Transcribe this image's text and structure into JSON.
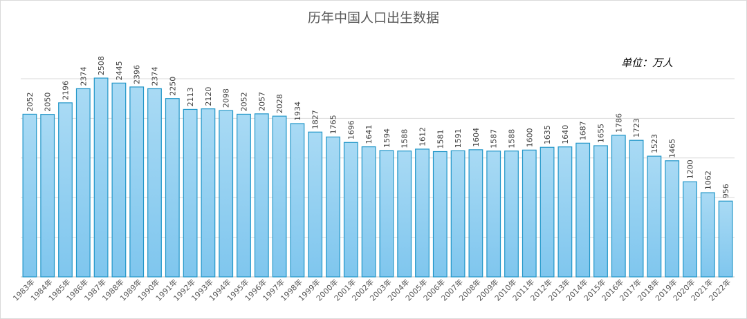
{
  "chart_data": {
    "type": "bar",
    "title": "历年中国人口出生数据",
    "unit_label": "单位：万人",
    "categories": [
      "1983年",
      "1984年",
      "1985年",
      "1986年",
      "1987年",
      "1988年",
      "1989年",
      "1990年",
      "1991年",
      "1992年",
      "1993年",
      "1994年",
      "1995年",
      "1996年",
      "1997年",
      "1998年",
      "1999年",
      "2000年",
      "2001年",
      "2002年",
      "2003年",
      "2004年",
      "2005年",
      "2006年",
      "2007年",
      "2008年",
      "2009年",
      "2010年",
      "2011年",
      "2012年",
      "2013年",
      "2014年",
      "2015年",
      "2016年",
      "2017年",
      "2018年",
      "2019年",
      "2020年",
      "2021年",
      "2022年"
    ],
    "values": [
      2052,
      2050,
      2196,
      2374,
      2508,
      2445,
      2396,
      2374,
      2250,
      2113,
      2120,
      2098,
      2052,
      2057,
      2028,
      1934,
      1827,
      1765,
      1696,
      1641,
      1594,
      1588,
      1612,
      1581,
      1591,
      1604,
      1587,
      1588,
      1600,
      1635,
      1640,
      1687,
      1655,
      1786,
      1723,
      1523,
      1465,
      1200,
      1062,
      956
    ],
    "ylim": [
      0,
      2500
    ],
    "grid": true,
    "bar_color": "#9dd3f1",
    "bar_edge_color": "#2196c8"
  }
}
